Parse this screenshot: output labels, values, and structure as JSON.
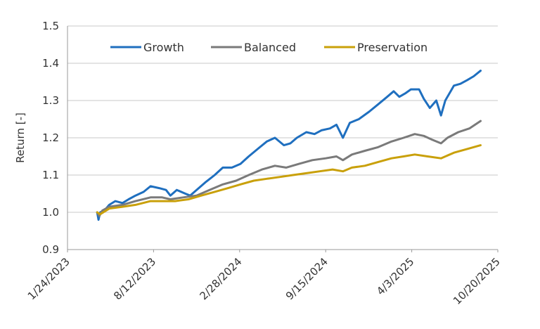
{
  "chart_data": {
    "type": "line",
    "title": "",
    "xlabel": "",
    "ylabel": "Return [-]",
    "xlim": [
      "1/24/2023",
      "10/20/2025"
    ],
    "ylim": [
      0.9,
      1.5
    ],
    "x_ticks": [
      "1/24/2023",
      "8/12/2023",
      "2/28/2024",
      "9/15/2024",
      "4/3/2025",
      "10/20/2025"
    ],
    "y_ticks": [
      "0.9",
      "1.0",
      "1.1",
      "1.2",
      "1.3",
      "1.4",
      "1.5"
    ],
    "grid": "horizontal",
    "legend": "top",
    "series": [
      {
        "name": "Growth",
        "color": "#1f6fbf",
        "points": [
          [
            "4/3/2023",
            1.0
          ],
          [
            "4/6/2023",
            0.98
          ],
          [
            "4/10/2023",
            1.0
          ],
          [
            "4/20/2023",
            1.005
          ],
          [
            "5/1/2023",
            1.02
          ],
          [
            "5/15/2023",
            1.03
          ],
          [
            "6/1/2023",
            1.025
          ],
          [
            "6/15/2023",
            1.035
          ],
          [
            "7/1/2023",
            1.045
          ],
          [
            "7/20/2023",
            1.055
          ],
          [
            "8/5/2023",
            1.07
          ],
          [
            "8/25/2023",
            1.065
          ],
          [
            "9/10/2023",
            1.06
          ],
          [
            "9/20/2023",
            1.045
          ],
          [
            "10/5/2023",
            1.06
          ],
          [
            "10/25/2023",
            1.05
          ],
          [
            "11/5/2023",
            1.045
          ],
          [
            "11/20/2023",
            1.06
          ],
          [
            "12/10/2023",
            1.08
          ],
          [
            "1/1/2024",
            1.1
          ],
          [
            "1/20/2024",
            1.12
          ],
          [
            "2/10/2024",
            1.12
          ],
          [
            "3/1/2024",
            1.13
          ],
          [
            "3/20/2024",
            1.15
          ],
          [
            "4/10/2024",
            1.17
          ],
          [
            "5/1/2024",
            1.19
          ],
          [
            "5/20/2024",
            1.2
          ],
          [
            "6/10/2024",
            1.18
          ],
          [
            "6/25/2024",
            1.185
          ],
          [
            "7/10/2024",
            1.2
          ],
          [
            "8/1/2024",
            1.215
          ],
          [
            "8/20/2024",
            1.21
          ],
          [
            "9/5/2024",
            1.22
          ],
          [
            "9/25/2024",
            1.225
          ],
          [
            "10/10/2024",
            1.235
          ],
          [
            "10/25/2024",
            1.2
          ],
          [
            "11/10/2024",
            1.24
          ],
          [
            "12/1/2024",
            1.25
          ],
          [
            "12/25/2024",
            1.27
          ],
          [
            "1/15/2025",
            1.29
          ],
          [
            "2/5/2025",
            1.31
          ],
          [
            "2/20/2025",
            1.325
          ],
          [
            "3/5/2025",
            1.31
          ],
          [
            "3/20/2025",
            1.32
          ],
          [
            "4/1/2025",
            1.33
          ],
          [
            "4/20/2025",
            1.33
          ],
          [
            "5/1/2025",
            1.305
          ],
          [
            "5/15/2025",
            1.28
          ],
          [
            "5/30/2025",
            1.3
          ],
          [
            "6/10/2025",
            1.26
          ],
          [
            "6/20/2025",
            1.3
          ],
          [
            "7/10/2025",
            1.34
          ],
          [
            "7/25/2025",
            1.345
          ],
          [
            "8/10/2025",
            1.355
          ],
          [
            "8/25/2025",
            1.365
          ],
          [
            "9/10/2025",
            1.38
          ]
        ]
      },
      {
        "name": "Balanced",
        "color": "#7a7a7a",
        "points": [
          [
            "4/3/2023",
            1.0
          ],
          [
            "4/8/2023",
            0.99
          ],
          [
            "4/15/2023",
            1.005
          ],
          [
            "5/1/2023",
            1.015
          ],
          [
            "6/1/2023",
            1.02
          ],
          [
            "7/1/2023",
            1.03
          ],
          [
            "8/5/2023",
            1.04
          ],
          [
            "9/1/2023",
            1.04
          ],
          [
            "9/20/2023",
            1.035
          ],
          [
            "10/20/2023",
            1.04
          ],
          [
            "11/20/2023",
            1.045
          ],
          [
            "12/20/2023",
            1.06
          ],
          [
            "1/20/2024",
            1.075
          ],
          [
            "2/20/2024",
            1.085
          ],
          [
            "3/20/2024",
            1.1
          ],
          [
            "4/20/2024",
            1.115
          ],
          [
            "5/20/2024",
            1.125
          ],
          [
            "6/15/2024",
            1.12
          ],
          [
            "7/15/2024",
            1.13
          ],
          [
            "8/15/2024",
            1.14
          ],
          [
            "9/15/2024",
            1.145
          ],
          [
            "10/10/2024",
            1.15
          ],
          [
            "10/25/2024",
            1.14
          ],
          [
            "11/15/2024",
            1.155
          ],
          [
            "12/15/2024",
            1.165
          ],
          [
            "1/15/2025",
            1.175
          ],
          [
            "2/15/2025",
            1.19
          ],
          [
            "3/15/2025",
            1.2
          ],
          [
            "4/10/2025",
            1.21
          ],
          [
            "5/1/2025",
            1.205
          ],
          [
            "5/20/2025",
            1.195
          ],
          [
            "6/10/2025",
            1.185
          ],
          [
            "6/25/2025",
            1.2
          ],
          [
            "7/20/2025",
            1.215
          ],
          [
            "8/15/2025",
            1.225
          ],
          [
            "9/10/2025",
            1.245
          ]
        ]
      },
      {
        "name": "Preservation",
        "color": "#c9a00a",
        "points": [
          [
            "4/3/2023",
            1.0
          ],
          [
            "4/10/2023",
            0.995
          ],
          [
            "5/1/2023",
            1.01
          ],
          [
            "6/1/2023",
            1.015
          ],
          [
            "7/1/2023",
            1.02
          ],
          [
            "8/5/2023",
            1.03
          ],
          [
            "9/1/2023",
            1.03
          ],
          [
            "10/1/2023",
            1.03
          ],
          [
            "11/1/2023",
            1.035
          ],
          [
            "12/1/2023",
            1.045
          ],
          [
            "1/1/2024",
            1.055
          ],
          [
            "2/1/2024",
            1.065
          ],
          [
            "3/1/2024",
            1.075
          ],
          [
            "4/1/2024",
            1.085
          ],
          [
            "5/1/2024",
            1.09
          ],
          [
            "6/1/2024",
            1.095
          ],
          [
            "7/1/2024",
            1.1
          ],
          [
            "8/1/2024",
            1.105
          ],
          [
            "9/1/2024",
            1.11
          ],
          [
            "10/1/2024",
            1.115
          ],
          [
            "10/25/2024",
            1.11
          ],
          [
            "11/15/2024",
            1.12
          ],
          [
            "12/15/2024",
            1.125
          ],
          [
            "1/15/2025",
            1.135
          ],
          [
            "2/15/2025",
            1.145
          ],
          [
            "3/15/2025",
            1.15
          ],
          [
            "4/10/2025",
            1.155
          ],
          [
            "5/10/2025",
            1.15
          ],
          [
            "6/10/2025",
            1.145
          ],
          [
            "7/10/2025",
            1.16
          ],
          [
            "8/10/2025",
            1.17
          ],
          [
            "9/10/2025",
            1.18
          ]
        ]
      }
    ]
  }
}
